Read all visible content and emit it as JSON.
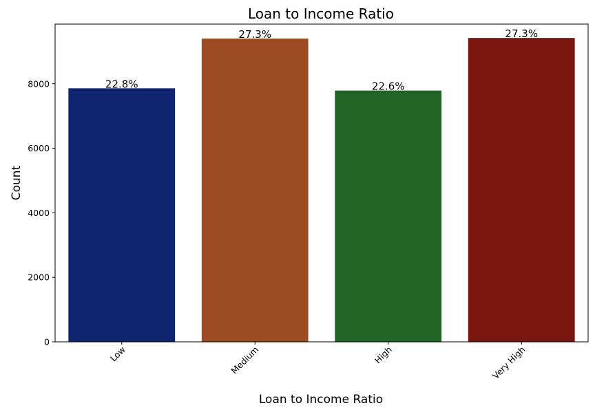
{
  "chart_data": {
    "type": "bar",
    "title": "Loan to Income Ratio",
    "xlabel": "Loan to Income Ratio",
    "ylabel": "Count",
    "categories": [
      "Low",
      "Medium",
      "High",
      "Very High"
    ],
    "values": [
      7860,
      9400,
      7790,
      9420
    ],
    "data_labels": [
      "22.8%",
      "27.3%",
      "22.6%",
      "27.3%"
    ],
    "colors": [
      "#102570",
      "#9b4a22",
      "#206525",
      "#77170f"
    ],
    "ylim": [
      0,
      9850
    ],
    "yticks": [
      0,
      2000,
      4000,
      6000,
      8000
    ],
    "x_tick_rotation_deg": 45,
    "grid": false,
    "legend": "none"
  }
}
